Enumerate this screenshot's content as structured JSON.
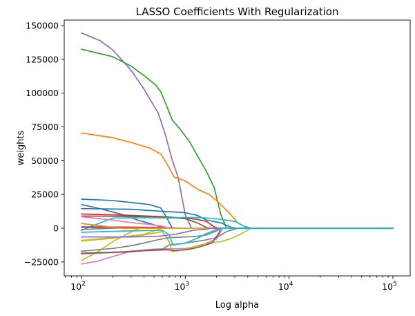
{
  "chart_data": {
    "type": "line",
    "title": "LASSO Coefficients With Regularization",
    "xlabel": "Log alpha",
    "ylabel": "weights",
    "xscale": "log",
    "xlim": [
      100,
      100000
    ],
    "ylim": [
      -33000,
      153000
    ],
    "grid": false,
    "legend": "none",
    "x_ticks": [
      {
        "value": 100,
        "base": "10",
        "exp": "2"
      },
      {
        "value": 1000,
        "base": "10",
        "exp": "3"
      },
      {
        "value": 10000,
        "base": "10",
        "exp": "4"
      },
      {
        "value": 100000,
        "base": "10",
        "exp": "5"
      }
    ],
    "y_ticks": [
      {
        "value": -25000,
        "label": "−25000"
      },
      {
        "value": 0,
        "label": "0"
      },
      {
        "value": 25000,
        "label": "25000"
      },
      {
        "value": 50000,
        "label": "50000"
      },
      {
        "value": 75000,
        "label": "75000"
      },
      {
        "value": 100000,
        "label": "100000"
      },
      {
        "value": 125000,
        "label": "125000"
      },
      {
        "value": 150000,
        "label": "150000"
      }
    ],
    "series": [
      {
        "color": "#9467bd",
        "points": [
          [
            100,
            144500
          ],
          [
            150,
            139000
          ],
          [
            200,
            132000
          ],
          [
            300,
            117000
          ],
          [
            400,
            103000
          ],
          [
            550,
            85000
          ],
          [
            650,
            68000
          ],
          [
            750,
            50000
          ],
          [
            850,
            38000
          ],
          [
            1000,
            10000
          ],
          [
            1150,
            0
          ],
          [
            100000,
            0
          ]
        ]
      },
      {
        "color": "#2ca02c",
        "points": [
          [
            100,
            132500
          ],
          [
            200,
            127000
          ],
          [
            300,
            120000
          ],
          [
            400,
            113000
          ],
          [
            520,
            106000
          ],
          [
            580,
            101000
          ],
          [
            650,
            92000
          ],
          [
            750,
            80000
          ],
          [
            900,
            73000
          ],
          [
            1100,
            64000
          ],
          [
            1300,
            54000
          ],
          [
            1600,
            42000
          ],
          [
            1900,
            30000
          ],
          [
            2200,
            10000
          ],
          [
            2500,
            0
          ],
          [
            100000,
            0
          ]
        ]
      },
      {
        "color": "#ff7f0e",
        "points": [
          [
            100,
            70500
          ],
          [
            200,
            67000
          ],
          [
            300,
            63500
          ],
          [
            450,
            59500
          ],
          [
            580,
            55000
          ],
          [
            650,
            49000
          ],
          [
            780,
            38000
          ],
          [
            1000,
            35000
          ],
          [
            1300,
            29000
          ],
          [
            1700,
            25000
          ],
          [
            2100,
            19000
          ],
          [
            2600,
            12000
          ],
          [
            3200,
            4000
          ],
          [
            4000,
            0
          ],
          [
            100000,
            0
          ]
        ]
      },
      {
        "color": "#1f77b4",
        "points": [
          [
            100,
            21500
          ],
          [
            200,
            20500
          ],
          [
            300,
            19000
          ],
          [
            450,
            17500
          ],
          [
            580,
            15000
          ],
          [
            650,
            9000
          ],
          [
            750,
            0
          ],
          [
            100000,
            0
          ]
        ]
      },
      {
        "color": "#1f77b4",
        "points": [
          [
            100,
            17500
          ],
          [
            150,
            14500
          ],
          [
            250,
            10000
          ],
          [
            350,
            6000
          ],
          [
            500,
            2500
          ],
          [
            650,
            0
          ],
          [
            100000,
            0
          ]
        ]
      },
      {
        "color": "#1f77b4",
        "points": [
          [
            100,
            14500
          ],
          [
            300,
            14000
          ],
          [
            600,
            12500
          ],
          [
            1000,
            11500
          ],
          [
            1300,
            9500
          ],
          [
            1600,
            6000
          ],
          [
            2200,
            4000
          ],
          [
            2800,
            500
          ],
          [
            3100,
            0
          ],
          [
            100000,
            0
          ]
        ]
      },
      {
        "color": "#d62728",
        "points": [
          [
            100,
            10500
          ],
          [
            300,
            9500
          ],
          [
            600,
            8500
          ],
          [
            1000,
            7500
          ],
          [
            1300,
            6500
          ],
          [
            1600,
            5000
          ],
          [
            1900,
            1000
          ],
          [
            2100,
            0
          ],
          [
            100000,
            0
          ]
        ]
      },
      {
        "color": "#8c564b",
        "points": [
          [
            100,
            9000
          ],
          [
            200,
            8800
          ],
          [
            400,
            8500
          ],
          [
            700,
            8000
          ],
          [
            1000,
            7000
          ],
          [
            1300,
            4000
          ],
          [
            1600,
            500
          ],
          [
            1800,
            0
          ],
          [
            100000,
            0
          ]
        ]
      },
      {
        "color": "#17becf",
        "points": [
          [
            100,
            -1500
          ],
          [
            200,
            7500
          ],
          [
            400,
            7800
          ],
          [
            700,
            7500
          ],
          [
            1000,
            8000
          ],
          [
            1400,
            7800
          ],
          [
            2000,
            7000
          ],
          [
            3000,
            5000
          ],
          [
            3700,
            1500
          ],
          [
            4300,
            0
          ],
          [
            100000,
            0
          ]
        ]
      },
      {
        "color": "#9467bd",
        "points": [
          [
            100,
            -1000
          ],
          [
            200,
            0
          ],
          [
            300,
            300
          ],
          [
            600,
            0
          ],
          [
            100000,
            0
          ]
        ]
      },
      {
        "color": "#d62728",
        "points": [
          [
            100,
            1000
          ],
          [
            300,
            800
          ],
          [
            600,
            500
          ],
          [
            1000,
            0
          ],
          [
            100000,
            0
          ]
        ]
      },
      {
        "color": "#7f7f7f",
        "points": [
          [
            100,
            500
          ],
          [
            500,
            0
          ],
          [
            100000,
            0
          ]
        ]
      },
      {
        "color": "#bcbd22",
        "points": [
          [
            100,
            -9500
          ],
          [
            200,
            -7500
          ],
          [
            400,
            -4500
          ],
          [
            600,
            0
          ],
          [
            100000,
            0
          ]
        ]
      },
      {
        "color": "#ff7f0e",
        "points": [
          [
            100,
            3500
          ],
          [
            150,
            1800
          ],
          [
            200,
            500
          ],
          [
            250,
            0
          ],
          [
            100000,
            0
          ]
        ]
      },
      {
        "color": "#e377c2",
        "points": [
          [
            100,
            8500
          ],
          [
            200,
            6000
          ],
          [
            300,
            4200
          ],
          [
            450,
            2800
          ],
          [
            600,
            1500
          ],
          [
            700,
            0
          ],
          [
            100000,
            0
          ]
        ]
      },
      {
        "color": "#e377c2",
        "points": [
          [
            100,
            -26500
          ],
          [
            140,
            -24500
          ],
          [
            200,
            -21000
          ],
          [
            300,
            -17000
          ],
          [
            500,
            -15500
          ],
          [
            1000,
            -15000
          ],
          [
            1200,
            -14000
          ],
          [
            1500,
            -12000
          ],
          [
            2000,
            -8000
          ],
          [
            2300,
            0
          ],
          [
            100000,
            0
          ]
        ]
      },
      {
        "color": "#bcbd22",
        "points": [
          [
            100,
            -24000
          ],
          [
            140,
            -18000
          ],
          [
            200,
            -10000
          ],
          [
            280,
            -4000
          ],
          [
            350,
            -500
          ],
          [
            380,
            0
          ],
          [
            100000,
            0
          ]
        ]
      },
      {
        "color": "#bcbd22",
        "points": [
          [
            100,
            -9000
          ],
          [
            200,
            -7000
          ],
          [
            400,
            -5000
          ],
          [
            600,
            -2500
          ],
          [
            700,
            -10000
          ],
          [
            750,
            -17500
          ],
          [
            1000,
            -15500
          ],
          [
            1300,
            -13000
          ],
          [
            1800,
            -10500
          ],
          [
            2200,
            -10000
          ],
          [
            2800,
            -7500
          ],
          [
            3500,
            -4000
          ],
          [
            4300,
            0
          ],
          [
            100000,
            0
          ]
        ]
      },
      {
        "color": "#7f7f7f",
        "points": [
          [
            100,
            -17000
          ],
          [
            200,
            -15000
          ],
          [
            300,
            -13000
          ],
          [
            400,
            -11000
          ],
          [
            550,
            -8500
          ],
          [
            700,
            -7000
          ],
          [
            1000,
            -6500
          ],
          [
            1300,
            -6000
          ],
          [
            1600,
            -5000
          ],
          [
            2000,
            -2000
          ],
          [
            2200,
            0
          ],
          [
            100000,
            0
          ]
        ]
      },
      {
        "color": "#7f7f7f",
        "points": [
          [
            100,
            -19000
          ],
          [
            300,
            -17500
          ],
          [
            500,
            -16000
          ],
          [
            600,
            -15500
          ],
          [
            700,
            -12500
          ],
          [
            1000,
            -11000
          ],
          [
            1500,
            -9000
          ],
          [
            2000,
            -7000
          ],
          [
            2500,
            -2500
          ],
          [
            3200,
            0
          ],
          [
            100000,
            0
          ]
        ]
      },
      {
        "color": "#8c564b",
        "points": [
          [
            100,
            -18500
          ],
          [
            250,
            -17500
          ],
          [
            450,
            -16500
          ],
          [
            650,
            -16000
          ],
          [
            800,
            -16500
          ],
          [
            1000,
            -16000
          ],
          [
            1200,
            -15000
          ],
          [
            1500,
            -13000
          ],
          [
            1800,
            -11000
          ],
          [
            2100,
            -4000
          ],
          [
            2200,
            0
          ],
          [
            100000,
            0
          ]
        ]
      },
      {
        "color": "#9467bd",
        "points": [
          [
            100,
            -6500
          ],
          [
            300,
            -6500
          ],
          [
            550,
            -6000
          ],
          [
            800,
            -4500
          ],
          [
            1200,
            -1500
          ],
          [
            1500,
            -1000
          ],
          [
            1800,
            0
          ],
          [
            100000,
            0
          ]
        ]
      },
      {
        "color": "#17becf",
        "points": [
          [
            100,
            -3000
          ],
          [
            300,
            -2000
          ],
          [
            600,
            -1500
          ],
          [
            700,
            -5000
          ],
          [
            760,
            -12500
          ],
          [
            1000,
            -11000
          ],
          [
            1300,
            -7500
          ],
          [
            1600,
            -4000
          ],
          [
            2000,
            -1000
          ],
          [
            2300,
            0
          ],
          [
            100000,
            0
          ]
        ]
      }
    ]
  }
}
